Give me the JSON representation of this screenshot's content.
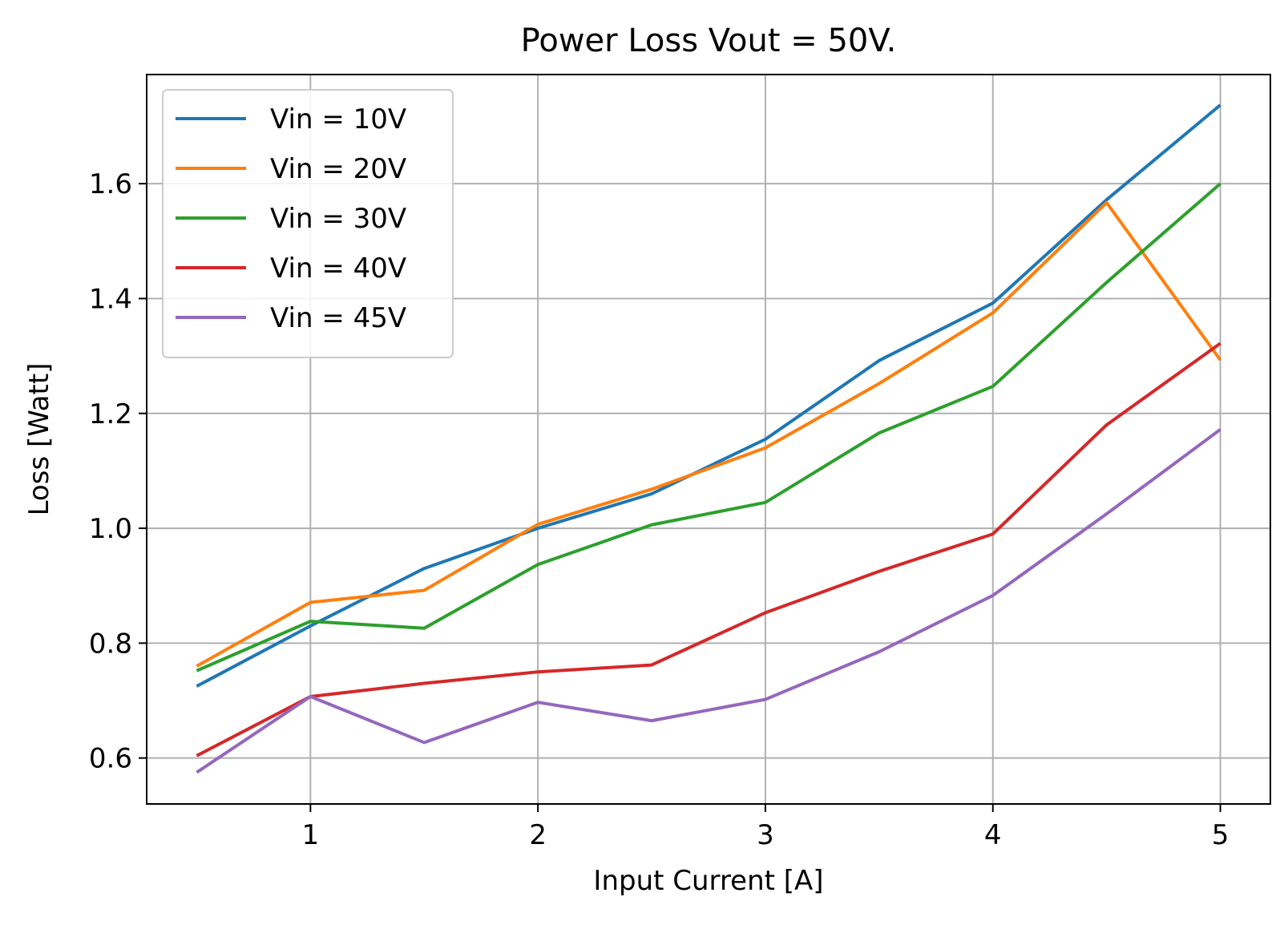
{
  "chart_data": {
    "type": "line",
    "title": "Power Loss Vout = 50V.",
    "xlabel": "Input Current [A]",
    "ylabel": "Loss [Watt]",
    "xlim": [
      0.28,
      5.22
    ],
    "ylim": [
      0.52,
      1.79
    ],
    "xticks": [
      1,
      2,
      3,
      4,
      5
    ],
    "yticks": [
      0.6,
      0.8,
      1.0,
      1.2,
      1.4,
      1.6
    ],
    "xtick_labels": [
      "1",
      "2",
      "3",
      "4",
      "5"
    ],
    "ytick_labels": [
      "0.6",
      "0.8",
      "1.0",
      "1.2",
      "1.4",
      "1.6"
    ],
    "grid": true,
    "legend_position": "top-left",
    "x": [
      0.5,
      1.0,
      1.5,
      2.0,
      2.5,
      3.0,
      3.5,
      4.0,
      4.5,
      5.0
    ],
    "series": [
      {
        "name": "Vin = 10V",
        "color": "#1f77b4",
        "values": [
          0.725,
          0.83,
          0.93,
          1.0,
          1.06,
          1.155,
          1.292,
          1.392,
          1.572,
          1.737
        ]
      },
      {
        "name": "Vin = 20V",
        "color": "#ff7f0e",
        "values": [
          0.76,
          0.871,
          0.892,
          1.007,
          1.068,
          1.14,
          1.252,
          1.375,
          1.567,
          1.293
        ]
      },
      {
        "name": "Vin = 30V",
        "color": "#2ca02c",
        "values": [
          0.752,
          0.838,
          0.826,
          0.937,
          1.006,
          1.045,
          1.166,
          1.247,
          1.428,
          1.6
        ]
      },
      {
        "name": "Vin = 40V",
        "color": "#d62728",
        "values": [
          0.604,
          0.707,
          0.73,
          0.75,
          0.762,
          0.853,
          0.925,
          0.99,
          1.18,
          1.322
        ]
      },
      {
        "name": "Vin = 45V",
        "color": "#9467bd",
        "values": [
          0.575,
          0.707,
          0.627,
          0.697,
          0.665,
          0.702,
          0.785,
          0.883,
          1.025,
          1.172
        ]
      }
    ]
  }
}
